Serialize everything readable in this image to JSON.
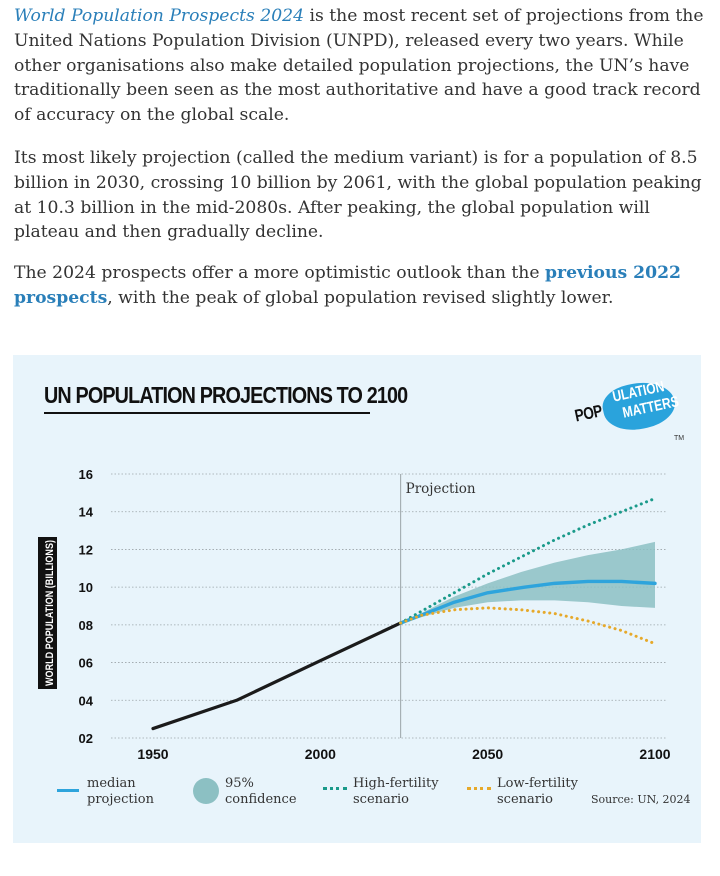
{
  "article": {
    "p1_link": "World Population Prospects 2024",
    "p1_text": " is the most recent set of projections from the United Nations Population Division (UNPD), released every two years. While other organisations also make detailed population projections, the UN’s have traditionally been seen as the most authoritative and have a good track record of accuracy on the global scale.",
    "p2_text": "Its most likely projection (called the medium variant) is for a population of 8.5 billion in 2030, crossing 10 billion by 2061, with the global population peaking at 10.3 billion in the mid-2080s. After peaking, the global population will plateau and then gradually decline.",
    "p3_before": "The 2024 prospects offer a more optimistic outlook than the ",
    "p3_link": "previous 2022 prospects",
    "p3_after": ", with the peak of global population revised slightly lower."
  },
  "logo": {
    "pop": "POP",
    "ulation": "ULATION",
    "matters": "MATTERS",
    "tm": "TM"
  },
  "colors": {
    "median": "#2ea4dc",
    "band": "#8cc0c3",
    "high": "#1a9a8a",
    "low": "#e6a92a",
    "history": "#1b1b1b",
    "card": "#e8f4fb"
  },
  "chart_data": {
    "type": "line",
    "title": "UN POPULATION PROJECTIONS TO 2100",
    "ylabel": "WORLD POPULATION (BILLIONS)",
    "xlabel": "",
    "xlim": [
      1950,
      2100
    ],
    "ylim": [
      2,
      16
    ],
    "x_ticks": [
      "1950",
      "2000",
      "2050",
      "2100"
    ],
    "y_ticks": [
      "02",
      "04",
      "06",
      "08",
      "10",
      "12",
      "14",
      "16"
    ],
    "grid": true,
    "annotation": "Projection",
    "projection_start": 2024,
    "source": "Source: UN, 2024",
    "series": [
      {
        "name": "historical",
        "style": "solid",
        "x": [
          1950,
          1975,
          2000,
          2024
        ],
        "y": [
          2.5,
          4.0,
          6.1,
          8.1
        ]
      },
      {
        "name": "median projection",
        "style": "solid",
        "x": [
          2024,
          2030,
          2040,
          2050,
          2061,
          2070,
          2080,
          2085,
          2090,
          2100
        ],
        "y": [
          8.1,
          8.5,
          9.2,
          9.7,
          10.0,
          10.2,
          10.3,
          10.3,
          10.3,
          10.2
        ]
      },
      {
        "name": "High-fertility scenario",
        "style": "dotted",
        "x": [
          2024,
          2030,
          2040,
          2050,
          2060,
          2070,
          2080,
          2090,
          2100
        ],
        "y": [
          8.1,
          8.7,
          9.7,
          10.7,
          11.6,
          12.5,
          13.3,
          14.0,
          14.7
        ]
      },
      {
        "name": "Low-fertility scenario",
        "style": "dotted",
        "x": [
          2024,
          2030,
          2040,
          2050,
          2060,
          2070,
          2080,
          2090,
          2100
        ],
        "y": [
          8.1,
          8.5,
          8.8,
          8.9,
          8.8,
          8.6,
          8.2,
          7.7,
          7.0
        ]
      }
    ],
    "confidence_band": {
      "name": "95% confidence",
      "x": [
        2024,
        2030,
        2040,
        2050,
        2060,
        2070,
        2080,
        2090,
        2100
      ],
      "lower": [
        8.1,
        8.4,
        8.9,
        9.2,
        9.3,
        9.3,
        9.2,
        9.0,
        8.9
      ],
      "upper": [
        8.1,
        8.6,
        9.5,
        10.2,
        10.8,
        11.3,
        11.7,
        12.0,
        12.4
      ]
    },
    "legend": [
      {
        "key": "median",
        "line1": "median",
        "line2": "projection"
      },
      {
        "key": "band",
        "line1": "95%",
        "line2": "confidence"
      },
      {
        "key": "high",
        "line1": "High-fertility",
        "line2": "scenario"
      },
      {
        "key": "low",
        "line1": "Low-fertility",
        "line2": "scenario"
      }
    ]
  }
}
